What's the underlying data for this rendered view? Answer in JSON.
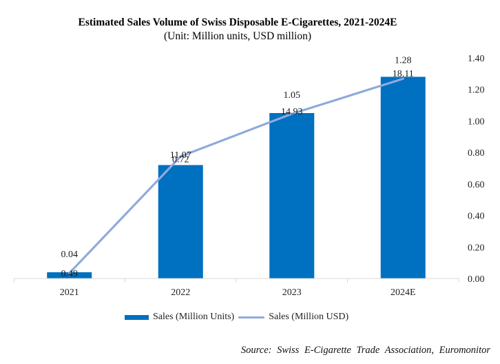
{
  "chart_data": {
    "type": "bar",
    "title": "Estimated Sales Volume of Swiss Disposable E-Cigarettes, 2021-2024E",
    "subtitle": "(Unit: Million units, USD million)",
    "categories": [
      "2021",
      "2022",
      "2023",
      "2024E"
    ],
    "series": [
      {
        "name": "Sales (Million Units)",
        "type": "bar",
        "axis": "right",
        "color": "#0070C0",
        "values": [
          0.04,
          0.72,
          1.05,
          1.28
        ],
        "labels": [
          "0.04",
          "0.72",
          "1.05",
          "1.28"
        ]
      },
      {
        "name": "Sales (Million USD)",
        "type": "line",
        "axis": "secondary-hidden",
        "color": "#8FAADC",
        "values": [
          0.49,
          11.07,
          14.93,
          18.11
        ],
        "labels": [
          "0.49",
          "11.07",
          "14.93",
          "18.11"
        ]
      }
    ],
    "right_axis": {
      "ylim": [
        0,
        1.4
      ],
      "ticks": [
        "0.00",
        "0.20",
        "0.40",
        "0.60",
        "0.80",
        "1.00",
        "1.20",
        "1.40"
      ]
    },
    "hidden_axis": {
      "ylim": [
        0,
        20
      ]
    },
    "xlabel": "",
    "ylabel": "",
    "grid": false,
    "legend_position": "bottom"
  },
  "source": "Source: Swiss E-Cigarette Trade Association, Euromonitor"
}
